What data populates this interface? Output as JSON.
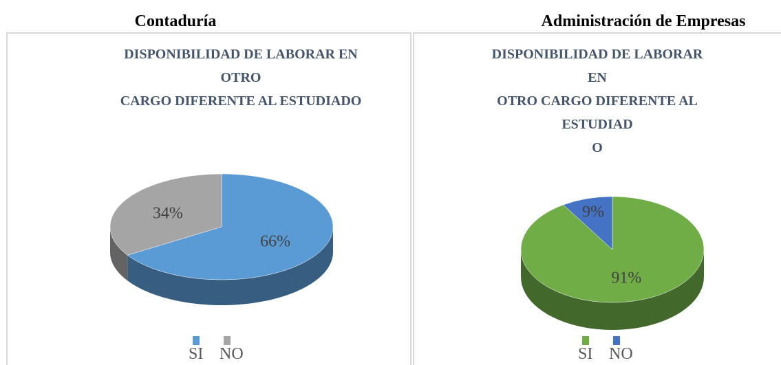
{
  "chart_data": [
    {
      "type": "pie",
      "heading": "Contaduría",
      "title": [
        "DISPONIBILIDAD DE LABORAR EN",
        "OTRO",
        "CARGO DIFERENTE AL ESTUDIADO"
      ],
      "categories": [
        "SI",
        "NO"
      ],
      "values": [
        66,
        34
      ],
      "value_labels": [
        "66%",
        "34%"
      ],
      "colors": [
        "#5b9bd5",
        "#a5a5a5"
      ]
    },
    {
      "type": "pie",
      "heading": "Administración de Empresas",
      "title": [
        "DISPONIBILIDAD DE LABORAR",
        "EN",
        "OTRO CARGO DIFERENTE AL",
        "ESTUDIAD",
        "O"
      ],
      "categories": [
        "SI",
        "NO"
      ],
      "values": [
        91,
        9
      ],
      "value_labels": [
        "91%",
        "9%"
      ],
      "colors": [
        "#70ad47",
        "#4472c4"
      ]
    }
  ]
}
